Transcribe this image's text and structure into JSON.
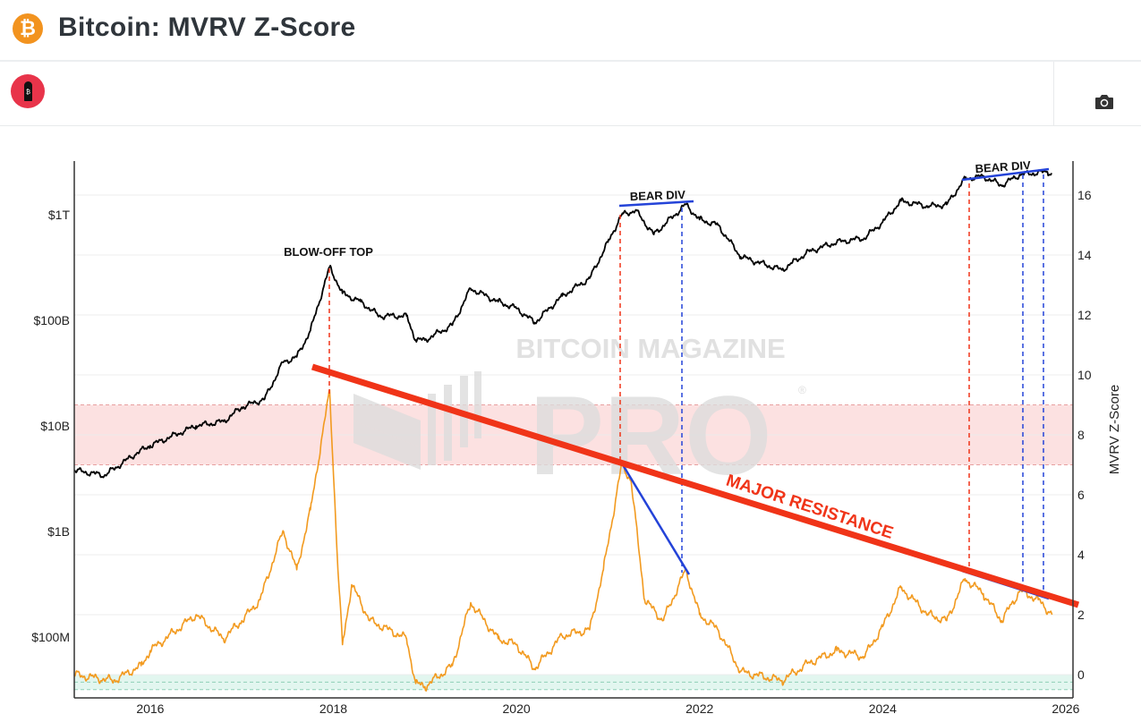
{
  "header": {
    "title": "Bitcoin: MVRV Z-Score",
    "logo_icon": "bitcoin-icon",
    "logo_glyph": "₿"
  },
  "toolbar": {
    "app_icon": "red-bitcoin-app-icon",
    "camera_icon": "camera-icon"
  },
  "watermark": {
    "line1": "BITCOIN MAGAZINE",
    "line2": "PRO",
    "mark": "®"
  },
  "colors": {
    "market_cap": "#000000",
    "zscore": "#f29a1f",
    "red_zone": "#fbdada",
    "green_zone": "#e2f6ef",
    "resistance": "#f03418",
    "divergence": "#2443d8"
  },
  "annotations": {
    "blow_off_top": "BLOW-OFF TOP",
    "bear_div_1": "BEAR DIV",
    "bear_div_2": "BEAR DIV",
    "major_resistance": "MAJOR RESISTANCE"
  },
  "chart_data": {
    "type": "line",
    "title": "Bitcoin: MVRV Z-Score",
    "x_ticks": [
      "2016",
      "2018",
      "2020",
      "2022",
      "2024",
      "2026"
    ],
    "xlim": [
      2015.17,
      2026.08
    ],
    "left_axis": {
      "scale": "log",
      "ticks": [
        "$100M",
        "$1B",
        "$10B",
        "$100B",
        "$1T"
      ],
      "unit": "USD billions",
      "ylim_billions": [
        0.03,
        8000
      ]
    },
    "right_axis": {
      "label": "MVRV Z-Score",
      "ticks": [
        "0",
        "2",
        "4",
        "6",
        "8",
        "10",
        "12",
        "14",
        "16"
      ],
      "ylim": [
        -0.8,
        17.1
      ]
    },
    "zones": [
      {
        "name": "red",
        "from": 7,
        "to": 9
      },
      {
        "name": "green",
        "from": -0.5,
        "to": 0
      }
    ],
    "grid": true,
    "series": [
      {
        "axis": "left",
        "color": "#000000",
        "x": [
          2015.17,
          2015.5,
          2015.85,
          2016.0,
          2016.5,
          2016.8,
          2017.0,
          2017.25,
          2017.45,
          2017.6,
          2017.75,
          2017.96,
          2018.1,
          2018.3,
          2018.5,
          2018.8,
          2018.9,
          2019.0,
          2019.3,
          2019.5,
          2019.8,
          2020.0,
          2020.2,
          2020.5,
          2020.8,
          2021.0,
          2021.15,
          2021.3,
          2021.5,
          2021.85,
          2022.0,
          2022.2,
          2022.45,
          2022.9,
          2023.2,
          2023.5,
          2023.8,
          2024.0,
          2024.2,
          2024.5,
          2024.7,
          2024.9,
          2025.1,
          2025.3,
          2025.5,
          2025.8,
          2025.85
        ],
        "values_billions": [
          3.8,
          3.4,
          5.5,
          6.5,
          10,
          11,
          15,
          18,
          40,
          45,
          80,
          320,
          180,
          150,
          110,
          110,
          65,
          65,
          90,
          200,
          150,
          130,
          95,
          170,
          250,
          550,
          1000,
          1100,
          650,
          1250,
          900,
          800,
          400,
          300,
          450,
          550,
          600,
          850,
          1350,
          1200,
          1250,
          2200,
          2300,
          1900,
          2400,
          2550,
          2450
        ]
      },
      {
        "axis": "right",
        "color": "#f29a1f",
        "x": [
          2015.17,
          2015.6,
          2015.9,
          2016.0,
          2016.5,
          2016.8,
          2017.0,
          2017.2,
          2017.45,
          2017.6,
          2017.75,
          2017.96,
          2018.05,
          2018.1,
          2018.2,
          2018.4,
          2018.8,
          2018.9,
          2019.0,
          2019.3,
          2019.5,
          2019.8,
          2020.0,
          2020.2,
          2020.5,
          2020.8,
          2020.95,
          2021.15,
          2021.25,
          2021.4,
          2021.6,
          2021.85,
          2022.0,
          2022.2,
          2022.45,
          2022.9,
          2023.2,
          2023.5,
          2023.8,
          2024.0,
          2024.2,
          2024.5,
          2024.7,
          2024.9,
          2025.1,
          2025.3,
          2025.5,
          2025.7,
          2025.85
        ],
        "values": [
          0.0,
          -0.2,
          0.3,
          0.8,
          2.0,
          1.2,
          1.8,
          2.5,
          4.8,
          3.5,
          5.5,
          9.5,
          3.5,
          1.0,
          3.0,
          1.8,
          1.2,
          -0.3,
          -0.4,
          0.3,
          2.4,
          1.2,
          1.0,
          0.2,
          1.3,
          1.5,
          3.5,
          7.0,
          6.5,
          2.5,
          1.8,
          3.5,
          2.0,
          1.5,
          0.1,
          -0.2,
          0.4,
          0.8,
          0.6,
          1.6,
          2.9,
          2.0,
          1.8,
          3.2,
          2.7,
          1.8,
          2.8,
          2.5,
          2.0
        ]
      }
    ]
  }
}
